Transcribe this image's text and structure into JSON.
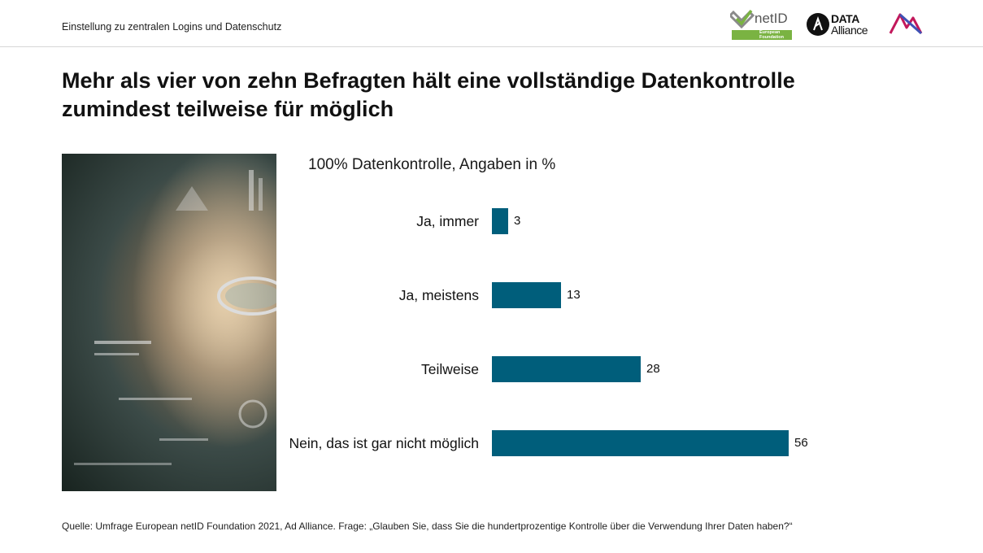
{
  "header": {
    "title": "Einstellung zu zentralen Logins und Datenschutz"
  },
  "logos": {
    "netid_word": "netID",
    "netid_badge_line1": "European",
    "netid_badge_line2": "Foundation",
    "data_alliance_line1": "DATA",
    "data_alliance_line2": "Alliance",
    "netid_color": "#7ab342"
  },
  "headline": {
    "line1": "Mehr als vier von zehn Befragten hält eine vollständige Datenkontrolle",
    "line2": "zumindest teilweise für möglich"
  },
  "chart_data": {
    "type": "bar",
    "orientation": "horizontal",
    "subtitle": "100% Datenkontrolle, Angaben in %",
    "categories": [
      "Ja, immer",
      "Ja, meistens",
      "Teilweise",
      "Nein, das ist gar nicht möglich"
    ],
    "values": [
      3,
      13,
      28,
      56
    ],
    "value_labels": [
      "3",
      "13",
      "28",
      "56"
    ],
    "bar_color": "#005e7b",
    "xlim": [
      0,
      56
    ],
    "grid": false,
    "legend": "none"
  },
  "source": {
    "text": "Quelle: Umfrage European netID Foundation 2021, Ad Alliance. Frage: „Glauben Sie, dass Sie die hundertprozentige Kontrolle über die Verwendung Ihrer Daten haben?“"
  }
}
